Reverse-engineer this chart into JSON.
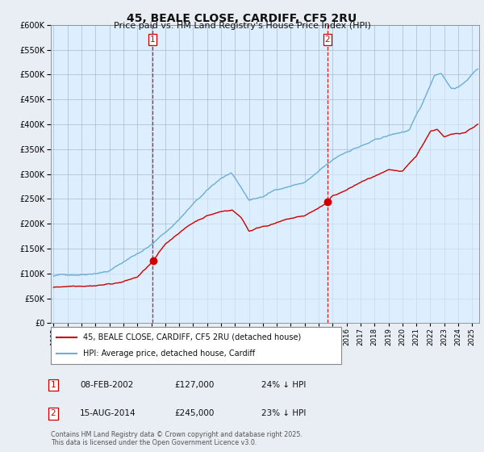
{
  "title": "45, BEALE CLOSE, CARDIFF, CF5 2RU",
  "subtitle": "Price paid vs. HM Land Registry's House Price Index (HPI)",
  "ylim": [
    0,
    600000
  ],
  "yticks": [
    0,
    50000,
    100000,
    150000,
    200000,
    250000,
    300000,
    350000,
    400000,
    450000,
    500000,
    550000,
    600000
  ],
  "hpi_color": "#6baed6",
  "hpi_fill_color": "#ddeeff",
  "price_color": "#cc0000",
  "vline_color": "#cc0000",
  "background_color": "#e8eef4",
  "plot_bg": "#ddeeff",
  "grid_color": "#aabbcc",
  "legend_label_price": "45, BEALE CLOSE, CARDIFF, CF5 2RU (detached house)",
  "legend_label_hpi": "HPI: Average price, detached house, Cardiff",
  "purchase1_date": "08-FEB-2002",
  "purchase1_price": 127000,
  "purchase1_pct": "24% ↓ HPI",
  "purchase2_date": "15-AUG-2014",
  "purchase2_price": 245000,
  "purchase2_pct": "23% ↓ HPI",
  "footnote": "Contains HM Land Registry data © Crown copyright and database right 2025.\nThis data is licensed under the Open Government Licence v3.0.",
  "vline1_x": 2002.1,
  "vline2_x": 2014.62,
  "xmin": 1994.8,
  "xmax": 2025.5,
  "seed": 42
}
